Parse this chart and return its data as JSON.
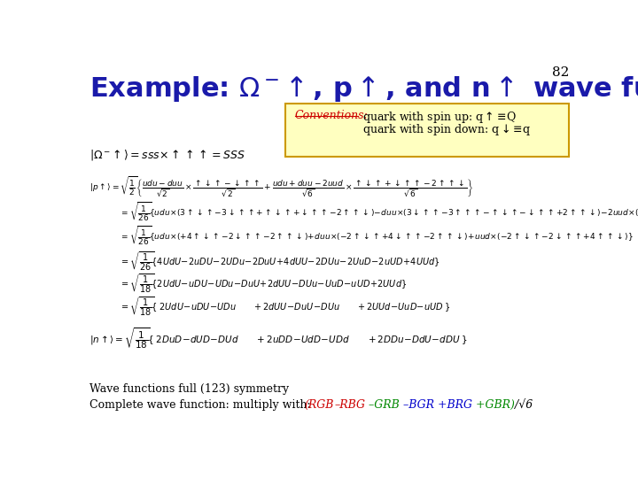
{
  "title": "Example: $\\Omega^-\\!\\uparrow$, p$\\uparrow$, and n$\\uparrow$ wave functions",
  "title_color": "#1a1aaa",
  "title_fontsize": 22,
  "slide_number": "82",
  "background_color": "#ffffff",
  "convention_box_color": "#ffffc0",
  "convention_box_edge": "#cc9900",
  "convention_title_color": "#cc0000",
  "footer_color": "#000000",
  "footer_line1": "Wave functions full (123) symmetry",
  "footer_line2_prefix": "Complete wave function: multiply with:",
  "rgb_parts": [
    {
      "text": "(RGB",
      "color": "#cc0000"
    },
    {
      "text": "–RBG",
      "color": "#cc0000"
    },
    {
      "text": " –GRB",
      "color": "#008800"
    },
    {
      "text": " –BGR",
      "color": "#0000cc"
    },
    {
      "text": " +BRG",
      "color": "#0000cc"
    },
    {
      "text": " +GBR)",
      "color": "#008800"
    },
    {
      "text": "/√6",
      "color": "#000000"
    }
  ]
}
